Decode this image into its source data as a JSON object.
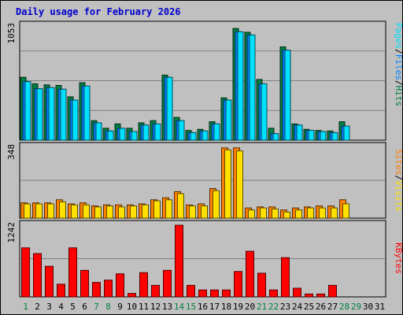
{
  "title": "Daily usage for February 2026",
  "colors": {
    "background": "#c0c0c0",
    "grid": "#808080",
    "title": "#0000cc",
    "hits": "#008040",
    "files": "#0080ff",
    "pages": "#00e0ff",
    "visits": "#ffe000",
    "sites": "#ff8000",
    "kbytes": "#ff0000",
    "weekend_label": "#008040",
    "weekday_label": "#000000"
  },
  "legend": {
    "pages": "Pages",
    "files": "Files",
    "hits": "Hits",
    "sites": "Sites",
    "visits": "Visits",
    "kbytes": "KBytes",
    "sep": "/"
  },
  "chart_data": {
    "type": "bar",
    "title": "Daily usage for February 2026",
    "categories": [
      "1",
      "2",
      "3",
      "4",
      "5",
      "6",
      "7",
      "8",
      "9",
      "10",
      "11",
      "12",
      "13",
      "14",
      "15",
      "16",
      "17",
      "18",
      "19",
      "20",
      "21",
      "22",
      "23",
      "24",
      "25",
      "26",
      "27",
      "28",
      "29",
      "30",
      "31"
    ],
    "weekend_days": [
      "1",
      "7",
      "8",
      "14",
      "15",
      "21",
      "22",
      "28",
      "29"
    ],
    "panels": [
      {
        "name": "hits-files-pages",
        "ymax_label": "1053",
        "ylim": [
          0,
          1053
        ],
        "series": [
          {
            "name": "Hits",
            "values": [
              580,
              520,
              510,
              505,
              400,
              530,
              180,
              110,
              150,
              110,
              160,
              180,
              600,
              210,
              90,
              100,
              170,
              390,
              1030,
              995,
              560,
              110,
              860,
              150,
              100,
              90,
              85,
              170,
              0,
              0,
              0
            ]
          },
          {
            "name": "Files",
            "values": [
              540,
              475,
              485,
              470,
              370,
              500,
              160,
              85,
              110,
              80,
              140,
              150,
              580,
              180,
              70,
              85,
              150,
              370,
              1000,
              970,
              520,
              60,
              830,
              140,
              90,
              80,
              70,
              130,
              0,
              0,
              0
            ]
          },
          {
            "name": "Pages",
            "values": [
              540,
              475,
              485,
              470,
              370,
              500,
              160,
              85,
              110,
              80,
              140,
              150,
              580,
              180,
              70,
              85,
              150,
              370,
              1000,
              970,
              520,
              60,
              830,
              140,
              90,
              80,
              70,
              130,
              0,
              0,
              0
            ]
          }
        ]
      },
      {
        "name": "sites-visits",
        "ymax_label": "348",
        "ylim": [
          0,
          348
        ],
        "series": [
          {
            "name": "Sites",
            "values": [
              75,
              75,
              75,
              90,
              70,
              75,
              60,
              65,
              65,
              65,
              70,
              90,
              100,
              130,
              65,
              70,
              145,
              345,
              345,
              50,
              55,
              55,
              40,
              50,
              55,
              60,
              60,
              90,
              0,
              0,
              0
            ]
          },
          {
            "name": "Visits",
            "values": [
              70,
              70,
              70,
              80,
              65,
              65,
              55,
              60,
              55,
              60,
              65,
              85,
              90,
              120,
              60,
              60,
              135,
              335,
              330,
              40,
              50,
              45,
              30,
              40,
              50,
              50,
              50,
              70,
              0,
              0,
              0
            ]
          }
        ]
      },
      {
        "name": "kbytes",
        "ymax_label": "1242",
        "ylim": [
          0,
          1242
        ],
        "series": [
          {
            "name": "KBytes",
            "values": [
              850,
              750,
              530,
              220,
              850,
              460,
              250,
              290,
              400,
              60,
              420,
              200,
              460,
              1242,
              200,
              120,
              120,
              120,
              440,
              790,
              410,
              120,
              680,
              150,
              50,
              50,
              200,
              0,
              0,
              0,
              0
            ]
          }
        ]
      }
    ]
  }
}
